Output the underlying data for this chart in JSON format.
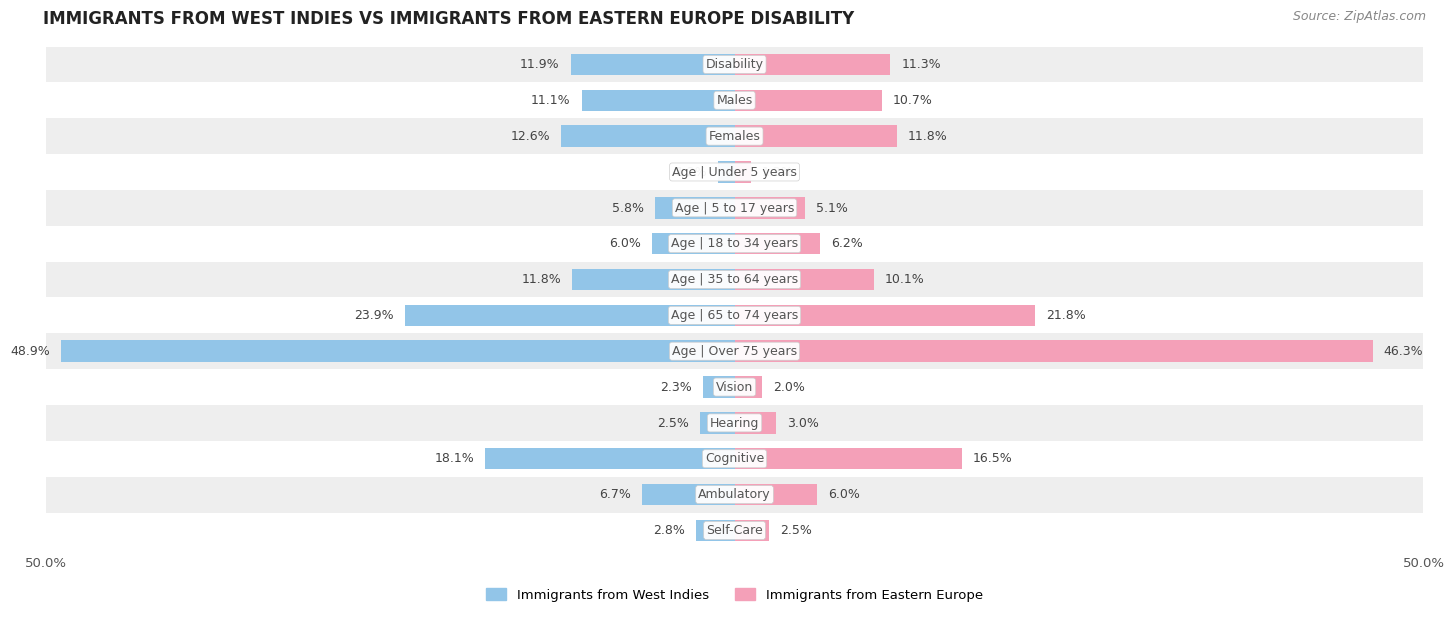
{
  "title": "IMMIGRANTS FROM WEST INDIES VS IMMIGRANTS FROM EASTERN EUROPE DISABILITY",
  "source": "Source: ZipAtlas.com",
  "categories": [
    "Disability",
    "Males",
    "Females",
    "Age | Under 5 years",
    "Age | 5 to 17 years",
    "Age | 18 to 34 years",
    "Age | 35 to 64 years",
    "Age | 65 to 74 years",
    "Age | Over 75 years",
    "Vision",
    "Hearing",
    "Cognitive",
    "Ambulatory",
    "Self-Care"
  ],
  "west_indies": [
    11.9,
    11.1,
    12.6,
    1.2,
    5.8,
    6.0,
    11.8,
    23.9,
    48.9,
    2.3,
    2.5,
    18.1,
    6.7,
    2.8
  ],
  "eastern_europe": [
    11.3,
    10.7,
    11.8,
    1.2,
    5.1,
    6.2,
    10.1,
    21.8,
    46.3,
    2.0,
    3.0,
    16.5,
    6.0,
    2.5
  ],
  "color_west_indies": "#92C5E8",
  "color_eastern_europe": "#F4A0B8",
  "color_west_indies_dark": "#F06090",
  "background_row_light": "#EEEEEE",
  "background_row_white": "#FFFFFF",
  "axis_limit": 50.0,
  "bar_height": 0.6,
  "label_fontsize": 9.5,
  "title_fontsize": 12,
  "source_fontsize": 9,
  "category_fontsize": 9.0,
  "value_fontsize": 9.0
}
